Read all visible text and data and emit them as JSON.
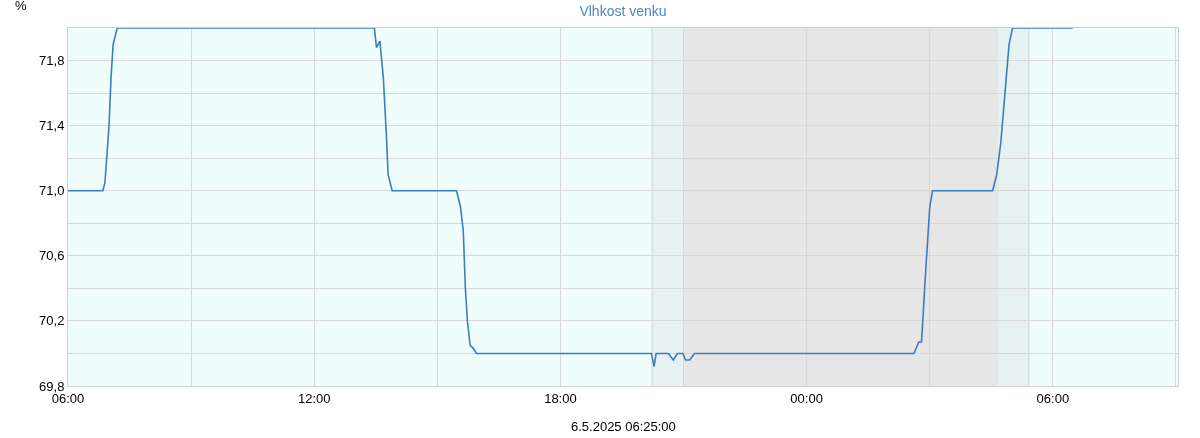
{
  "chart_data": {
    "type": "line",
    "title": "Vlhkost venku",
    "ylabel": "%",
    "annotations": [
      "6.5.2025 06:25:00"
    ],
    "x": [
      "2025-05-05T06:00",
      "2025-05-05T06:51",
      "2025-05-05T06:54",
      "2025-05-05T07:00",
      "2025-05-05T07:03",
      "2025-05-05T07:06",
      "2025-05-05T07:12",
      "2025-05-05T13:28",
      "2025-05-05T13:31",
      "2025-05-05T13:36",
      "2025-05-05T13:41",
      "2025-05-05T13:46",
      "2025-05-05T13:48",
      "2025-05-05T13:54",
      "2025-05-05T15:28",
      "2025-05-05T15:34",
      "2025-05-05T15:38",
      "2025-05-05T15:41",
      "2025-05-05T15:44",
      "2025-05-05T15:48",
      "2025-05-05T15:53",
      "2025-05-05T15:57",
      "2025-05-05T20:13",
      "2025-05-05T20:17",
      "2025-05-05T20:20",
      "2025-05-05T20:38",
      "2025-05-05T20:45",
      "2025-05-05T20:51",
      "2025-05-05T20:59",
      "2025-05-05T21:03",
      "2025-05-05T21:09",
      "2025-05-05T21:16",
      "2025-05-06T02:37",
      "2025-05-06T02:44",
      "2025-05-06T02:48",
      "2025-05-06T02:54",
      "2025-05-06T03:00",
      "2025-05-06T03:04",
      "2025-05-06T04:32",
      "2025-05-06T04:38",
      "2025-05-06T04:44",
      "2025-05-06T04:50",
      "2025-05-06T04:56",
      "2025-05-06T05:01",
      "2025-05-06T06:29"
    ],
    "series": [
      {
        "color": "#3a7ebf",
        "values": [
          71.0,
          71.0,
          71.05,
          71.4,
          71.7,
          71.9,
          72.0,
          72.0,
          71.88,
          71.92,
          71.7,
          71.3,
          71.1,
          71.0,
          71.0,
          70.9,
          70.75,
          70.4,
          70.2,
          70.05,
          70.03,
          70.0,
          70.0,
          69.92,
          70.0,
          70.0,
          69.96,
          70.0,
          70.0,
          69.96,
          69.96,
          70.0,
          70.0,
          70.07,
          70.07,
          70.5,
          70.9,
          71.0,
          71.0,
          71.1,
          71.3,
          71.6,
          71.9,
          72.0,
          72.0
        ]
      }
    ],
    "xlim": [
      "2025-05-05T06:00",
      "2025-05-06T09:03"
    ],
    "xticks": [
      {
        "value": "2025-05-05T06:00",
        "label": "06:00"
      },
      {
        "value": "2025-05-05T09:00",
        "label": null
      },
      {
        "value": "2025-05-05T12:00",
        "label": "12:00"
      },
      {
        "value": "2025-05-05T15:00",
        "label": null
      },
      {
        "value": "2025-05-05T18:00",
        "label": "18:00"
      },
      {
        "value": "2025-05-05T21:00",
        "label": null
      },
      {
        "value": "2025-05-06T00:00",
        "label": "00:00"
      },
      {
        "value": "2025-05-06T03:00",
        "label": null
      },
      {
        "value": "2025-05-06T06:00",
        "label": "06:00"
      },
      {
        "value": "2025-05-06T09:00",
        "label": null
      }
    ],
    "ylim": [
      69.8,
      72.0
    ],
    "yticks": [
      {
        "value": 69.8,
        "label": "69,8"
      },
      {
        "value": 70.0,
        "label": null
      },
      {
        "value": 70.2,
        "label": "70,2"
      },
      {
        "value": 70.4,
        "label": null
      },
      {
        "value": 70.6,
        "label": "70,6"
      },
      {
        "value": 70.8,
        "label": null
      },
      {
        "value": 71.0,
        "label": "71,0"
      },
      {
        "value": 71.2,
        "label": null
      },
      {
        "value": 71.4,
        "label": "71,4"
      },
      {
        "value": 71.6,
        "label": null
      },
      {
        "value": 71.8,
        "label": "71,8"
      },
      {
        "value": 72.0,
        "label": null
      }
    ],
    "bands": [
      {
        "axis": "x",
        "from": "2025-05-05T20:14",
        "to": "2025-05-05T21:00",
        "color": "#e8f2f2"
      },
      {
        "axis": "x",
        "from": "2025-05-05T21:00",
        "to": "2025-05-06T04:40",
        "color": "#e6e6e6"
      },
      {
        "axis": "x",
        "from": "2025-05-06T04:40",
        "to": "2025-05-06T05:25",
        "color": "#e6f2f2"
      }
    ],
    "ref_lines": [
      {
        "axis": "x",
        "value": "2025-05-05T20:14",
        "color": "#cfdada"
      },
      {
        "axis": "x",
        "value": "2025-05-06T05:25",
        "color": "#cfdada"
      }
    ],
    "grid": true,
    "marker": "none",
    "line_style": "solid"
  }
}
